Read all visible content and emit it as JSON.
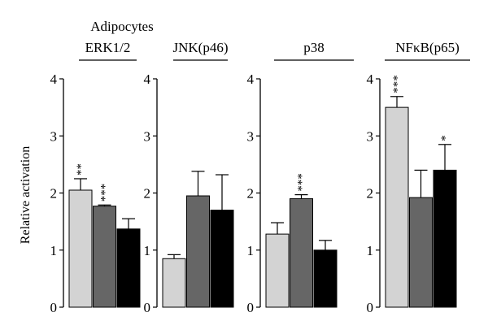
{
  "chart_data": {
    "type": "bar",
    "title": "Adipocytes",
    "ylabel": "Relative activation",
    "ylim": [
      0,
      4
    ],
    "yticks": [
      0,
      1,
      2,
      3,
      4
    ],
    "grid": false,
    "bar_colors": [
      "#d3d3d3",
      "#666666",
      "#000000"
    ],
    "panels": [
      {
        "name": "ERK1/2",
        "values": [
          2.05,
          1.77,
          1.37
        ],
        "errors": [
          0.2,
          0.02,
          0.18
        ],
        "annotations": [
          "**",
          "***",
          ""
        ]
      },
      {
        "name": "JNK(p46)",
        "values": [
          0.85,
          1.95,
          1.7
        ],
        "errors": [
          0.07,
          0.43,
          0.62
        ],
        "annotations": [
          "",
          "",
          ""
        ]
      },
      {
        "name": "p38",
        "values": [
          1.28,
          1.9,
          1.0
        ],
        "errors": [
          0.2,
          0.07,
          0.17
        ],
        "annotations": [
          "",
          "***",
          ""
        ]
      },
      {
        "name": "NFκB(p65)",
        "values": [
          3.5,
          1.92,
          2.4
        ],
        "errors": [
          0.19,
          0.48,
          0.45
        ],
        "annotations": [
          "***",
          "",
          "*"
        ]
      }
    ]
  }
}
